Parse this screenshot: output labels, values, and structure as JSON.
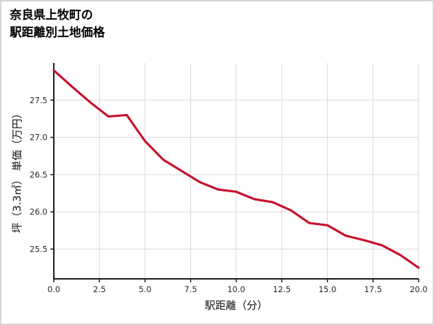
{
  "page": {
    "title_line1": "奈良県上牧町の",
    "title_line2": "駅距離別土地価格"
  },
  "chart_data": {
    "type": "line",
    "title": "奈良県上牧町の駅距離別土地価格",
    "xlabel": "駅距離（分）",
    "ylabel": "坪（3.3㎡） 単価（万円）",
    "x": [
      0,
      1,
      2,
      3,
      4,
      5,
      6,
      7,
      8,
      9,
      10,
      11,
      12,
      13,
      14,
      15,
      16,
      17,
      18,
      19,
      20
    ],
    "series": [
      {
        "name": "坪単価（万円）",
        "values": [
          27.9,
          27.68,
          27.47,
          27.28,
          27.3,
          26.95,
          26.7,
          26.55,
          26.4,
          26.3,
          26.27,
          26.17,
          26.13,
          26.02,
          25.85,
          25.82,
          25.68,
          25.62,
          25.55,
          25.42,
          25.25
        ]
      }
    ],
    "xlim": [
      0,
      20
    ],
    "ylim": [
      25.1,
      28.0
    ],
    "xticks": [
      0.0,
      2.5,
      5.0,
      7.5,
      10.0,
      12.5,
      15.0,
      17.5,
      20.0
    ],
    "xtick_labels": [
      "0.0",
      "2.5",
      "5.0",
      "7.5",
      "10.0",
      "12.5",
      "15.0",
      "17.5",
      "20.0"
    ],
    "yticks": [
      25.5,
      26.0,
      26.5,
      27.0,
      27.5
    ],
    "ytick_labels": [
      "25.5",
      "26.0",
      "26.5",
      "27.0",
      "27.5"
    ],
    "grid": true,
    "legend": "none",
    "line_color": "#c8102e",
    "grid_color": "#d9d9d9",
    "axis_color": "#1a1a1a",
    "tick_label_color": "#262626"
  }
}
